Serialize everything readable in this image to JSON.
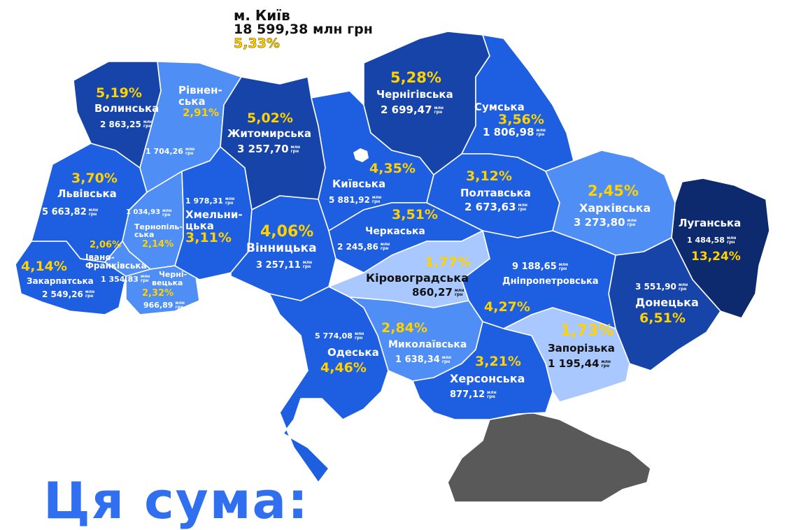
{
  "colors": {
    "darkest": "#0d2a6e",
    "dark": "#1644a8",
    "medium": "#1e5ee0",
    "light": "#4e8ef5",
    "lighter": "#a8c8ff",
    "crimea": "#595959",
    "percent": "#ffd200",
    "headline": "#2f6ff0"
  },
  "kyiv_city": {
    "name": "м. Київ",
    "value": "18 599,38 млн грн",
    "percent": "5,33%"
  },
  "unit": {
    "line1": "млн",
    "line2": "грн"
  },
  "headline": "Ця сума:",
  "regions": {
    "volynska": {
      "name": "Волинська",
      "percent": "5,19%",
      "value": "2 863,25",
      "fill": "dark"
    },
    "rivnenska": {
      "name": "Рівнен-",
      "name2": "ська",
      "percent": "2,91%",
      "value": "1 704,26",
      "fill": "light"
    },
    "zhytomyrska": {
      "name": "Житомирська",
      "percent": "5,02%",
      "value": "3 257,70",
      "fill": "dark"
    },
    "chernihivska": {
      "name": "Чернігівська",
      "percent": "5,28%",
      "value": "2 699,47",
      "fill": "dark"
    },
    "sumska": {
      "name": "Сумська",
      "percent": "3,56%",
      "value": "1 806,98",
      "fill": "medium"
    },
    "lvivska": {
      "name": "Львівська",
      "percent": "3,70%",
      "value": "5 663,82",
      "fill": "medium"
    },
    "ternopilska": {
      "name": "Тернопіль-",
      "name2": "ська",
      "percent": "2,14%",
      "value": "1 034,93",
      "fill": "light"
    },
    "khmelnytska": {
      "name": "Хмельни-",
      "name2": "цька",
      "percent": "3,11%",
      "value": "1 978,31",
      "fill": "medium"
    },
    "kyivska": {
      "name": "Київська",
      "percent": "4,35%",
      "value": "5 881,92",
      "fill": "medium"
    },
    "poltavska": {
      "name": "Полтавська",
      "percent": "3,12%",
      "value": "2 673,63",
      "fill": "medium"
    },
    "kharkivska": {
      "name": "Харківська",
      "percent": "2,45%",
      "value": "3 273,80",
      "fill": "light"
    },
    "luhanska": {
      "name": "Луганська",
      "percent": "13,24%",
      "value": "1 484,58",
      "fill": "darkest"
    },
    "vinnytska": {
      "name": "Вінницька",
      "percent": "4,06%",
      "value": "3 257,11",
      "fill": "medium"
    },
    "cherkaska": {
      "name": "Черкаська",
      "percent": "3,51%",
      "value": "2 245,86",
      "fill": "medium"
    },
    "kirovohradska": {
      "name": "Кіровоградська",
      "percent": "1,77%",
      "value": "860,27",
      "fill": "lighter"
    },
    "dnipropetrovska": {
      "name": "Дніпропетровська",
      "percent": "4,27%",
      "value": "9 188,65",
      "fill": "medium"
    },
    "donetska": {
      "name": "Донецька",
      "percent": "6,51%",
      "value": "3 551,90",
      "fill": "dark"
    },
    "zakarpatska": {
      "name": "Закарпатська",
      "percent": "4,14%",
      "value": "2 549,26",
      "fill": "medium"
    },
    "ivano_frankivska": {
      "name": "Івано-",
      "name2": "Франківська",
      "percent": "2,06%",
      "value": "1 354,83",
      "fill": "light"
    },
    "chernivetska": {
      "name": "Черні-",
      "name2": "вецька",
      "percent": "2,32%",
      "value": "966,89",
      "fill": "light"
    },
    "odeska": {
      "name": "Одеська",
      "percent": "4,46%",
      "value": "5 774,08",
      "fill": "medium"
    },
    "mykolaivska": {
      "name": "Миколаївська",
      "percent": "2,84%",
      "value": "1 638,34",
      "fill": "light"
    },
    "khersonska": {
      "name": "Херсонська",
      "percent": "3,21%",
      "value": "877,12",
      "fill": "medium"
    },
    "zaporizka": {
      "name": "Запорізька",
      "percent": "1,73%",
      "value": "1 195,44",
      "fill": "lighter"
    }
  }
}
